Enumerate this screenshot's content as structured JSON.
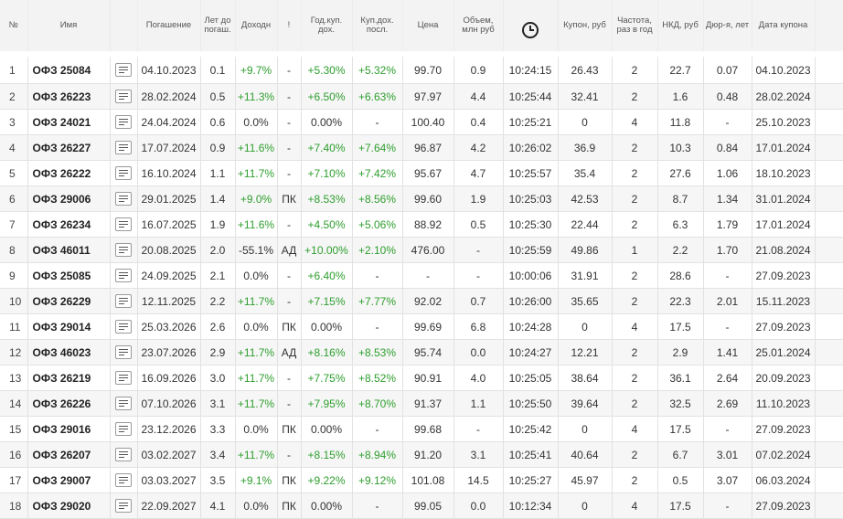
{
  "header": {
    "num": "№",
    "name": "Имя",
    "maturity": "Погашение",
    "years": "Лет до\nпогаш.",
    "yield": "Доходн",
    "flag": "!",
    "annual_coupon": "Год.куп.\nдох.",
    "coupon_last": "Куп.дох.\nпосл.",
    "price": "Цена",
    "volume": "Объем,\nмлн руб",
    "time_icon": "clock-icon",
    "coupon_rub": "Купон, руб",
    "frequency": "Частота,\nраз в год",
    "nkd": "НКД, руб",
    "duration": "Дюр-я, лет",
    "coupon_date": "Дата купона"
  },
  "colors": {
    "positive": "#2e9e2e",
    "header_bg": "#f3f3f3",
    "row_alt": "#f6f6f6"
  },
  "rows": [
    {
      "num": "1",
      "name": "ОФЗ 25084",
      "maturity": "04.10.2023",
      "years": "0.1",
      "yield": "+9.7%",
      "flag": "-",
      "annual_coupon": "+5.30%",
      "coupon_last": "+5.32%",
      "price": "99.70",
      "volume": "0.9",
      "time": "10:24:15",
      "coupon_rub": "26.43",
      "frequency": "2",
      "nkd": "22.7",
      "duration": "0.07",
      "coupon_date": "04.10.2023"
    },
    {
      "num": "2",
      "name": "ОФЗ 26223",
      "maturity": "28.02.2024",
      "years": "0.5",
      "yield": "+11.3%",
      "flag": "-",
      "annual_coupon": "+6.50%",
      "coupon_last": "+6.63%",
      "price": "97.97",
      "volume": "4.4",
      "time": "10:25:44",
      "coupon_rub": "32.41",
      "frequency": "2",
      "nkd": "1.6",
      "duration": "0.48",
      "coupon_date": "28.02.2024"
    },
    {
      "num": "3",
      "name": "ОФЗ 24021",
      "maturity": "24.04.2024",
      "years": "0.6",
      "yield": "0.0%",
      "flag": "-",
      "annual_coupon": "0.00%",
      "coupon_last": "-",
      "price": "100.40",
      "volume": "0.4",
      "time": "10:25:21",
      "coupon_rub": "0",
      "frequency": "4",
      "nkd": "11.8",
      "duration": "-",
      "coupon_date": "25.10.2023"
    },
    {
      "num": "4",
      "name": "ОФЗ 26227",
      "maturity": "17.07.2024",
      "years": "0.9",
      "yield": "+11.6%",
      "flag": "-",
      "annual_coupon": "+7.40%",
      "coupon_last": "+7.64%",
      "price": "96.87",
      "volume": "4.2",
      "time": "10:26:02",
      "coupon_rub": "36.9",
      "frequency": "2",
      "nkd": "10.3",
      "duration": "0.84",
      "coupon_date": "17.01.2024"
    },
    {
      "num": "5",
      "name": "ОФЗ 26222",
      "maturity": "16.10.2024",
      "years": "1.1",
      "yield": "+11.7%",
      "flag": "-",
      "annual_coupon": "+7.10%",
      "coupon_last": "+7.42%",
      "price": "95.67",
      "volume": "4.7",
      "time": "10:25:57",
      "coupon_rub": "35.4",
      "frequency": "2",
      "nkd": "27.6",
      "duration": "1.06",
      "coupon_date": "18.10.2023"
    },
    {
      "num": "6",
      "name": "ОФЗ 29006",
      "maturity": "29.01.2025",
      "years": "1.4",
      "yield": "+9.0%",
      "flag": "ПК",
      "annual_coupon": "+8.53%",
      "coupon_last": "+8.56%",
      "price": "99.60",
      "volume": "1.9",
      "time": "10:25:03",
      "coupon_rub": "42.53",
      "frequency": "2",
      "nkd": "8.7",
      "duration": "1.34",
      "coupon_date": "31.01.2024"
    },
    {
      "num": "7",
      "name": "ОФЗ 26234",
      "maturity": "16.07.2025",
      "years": "1.9",
      "yield": "+11.6%",
      "flag": "-",
      "annual_coupon": "+4.50%",
      "coupon_last": "+5.06%",
      "price": "88.92",
      "volume": "0.5",
      "time": "10:25:30",
      "coupon_rub": "22.44",
      "frequency": "2",
      "nkd": "6.3",
      "duration": "1.79",
      "coupon_date": "17.01.2024"
    },
    {
      "num": "8",
      "name": "ОФЗ 46011",
      "maturity": "20.08.2025",
      "years": "2.0",
      "yield": "-55.1%",
      "flag": "АД",
      "annual_coupon": "+10.00%",
      "coupon_last": "+2.10%",
      "price": "476.00",
      "volume": "-",
      "time": "10:25:59",
      "coupon_rub": "49.86",
      "frequency": "1",
      "nkd": "2.2",
      "duration": "1.70",
      "coupon_date": "21.08.2024"
    },
    {
      "num": "9",
      "name": "ОФЗ 25085",
      "maturity": "24.09.2025",
      "years": "2.1",
      "yield": "0.0%",
      "flag": "-",
      "annual_coupon": "+6.40%",
      "coupon_last": "-",
      "price": "-",
      "volume": "-",
      "time": "10:00:06",
      "coupon_rub": "31.91",
      "frequency": "2",
      "nkd": "28.6",
      "duration": "-",
      "coupon_date": "27.09.2023"
    },
    {
      "num": "10",
      "name": "ОФЗ 26229",
      "maturity": "12.11.2025",
      "years": "2.2",
      "yield": "+11.7%",
      "flag": "-",
      "annual_coupon": "+7.15%",
      "coupon_last": "+7.77%",
      "price": "92.02",
      "volume": "0.7",
      "time": "10:26:00",
      "coupon_rub": "35.65",
      "frequency": "2",
      "nkd": "22.3",
      "duration": "2.01",
      "coupon_date": "15.11.2023"
    },
    {
      "num": "11",
      "name": "ОФЗ 29014",
      "maturity": "25.03.2026",
      "years": "2.6",
      "yield": "0.0%",
      "flag": "ПК",
      "annual_coupon": "0.00%",
      "coupon_last": "-",
      "price": "99.69",
      "volume": "6.8",
      "time": "10:24:28",
      "coupon_rub": "0",
      "frequency": "4",
      "nkd": "17.5",
      "duration": "-",
      "coupon_date": "27.09.2023"
    },
    {
      "num": "12",
      "name": "ОФЗ 46023",
      "maturity": "23.07.2026",
      "years": "2.9",
      "yield": "+11.7%",
      "flag": "АД",
      "annual_coupon": "+8.16%",
      "coupon_last": "+8.53%",
      "price": "95.74",
      "volume": "0.0",
      "time": "10:24:27",
      "coupon_rub": "12.21",
      "frequency": "2",
      "nkd": "2.9",
      "duration": "1.41",
      "coupon_date": "25.01.2024"
    },
    {
      "num": "13",
      "name": "ОФЗ 26219",
      "maturity": "16.09.2026",
      "years": "3.0",
      "yield": "+11.7%",
      "flag": "-",
      "annual_coupon": "+7.75%",
      "coupon_last": "+8.52%",
      "price": "90.91",
      "volume": "4.0",
      "time": "10:25:05",
      "coupon_rub": "38.64",
      "frequency": "2",
      "nkd": "36.1",
      "duration": "2.64",
      "coupon_date": "20.09.2023"
    },
    {
      "num": "14",
      "name": "ОФЗ 26226",
      "maturity": "07.10.2026",
      "years": "3.1",
      "yield": "+11.7%",
      "flag": "-",
      "annual_coupon": "+7.95%",
      "coupon_last": "+8.70%",
      "price": "91.37",
      "volume": "1.1",
      "time": "10:25:50",
      "coupon_rub": "39.64",
      "frequency": "2",
      "nkd": "32.5",
      "duration": "2.69",
      "coupon_date": "11.10.2023"
    },
    {
      "num": "15",
      "name": "ОФЗ 29016",
      "maturity": "23.12.2026",
      "years": "3.3",
      "yield": "0.0%",
      "flag": "ПК",
      "annual_coupon": "0.00%",
      "coupon_last": "-",
      "price": "99.68",
      "volume": "-",
      "time": "10:25:42",
      "coupon_rub": "0",
      "frequency": "4",
      "nkd": "17.5",
      "duration": "-",
      "coupon_date": "27.09.2023"
    },
    {
      "num": "16",
      "name": "ОФЗ 26207",
      "maturity": "03.02.2027",
      "years": "3.4",
      "yield": "+11.7%",
      "flag": "-",
      "annual_coupon": "+8.15%",
      "coupon_last": "+8.94%",
      "price": "91.20",
      "volume": "3.1",
      "time": "10:25:41",
      "coupon_rub": "40.64",
      "frequency": "2",
      "nkd": "6.7",
      "duration": "3.01",
      "coupon_date": "07.02.2024"
    },
    {
      "num": "17",
      "name": "ОФЗ 29007",
      "maturity": "03.03.2027",
      "years": "3.5",
      "yield": "+9.1%",
      "flag": "ПК",
      "annual_coupon": "+9.22%",
      "coupon_last": "+9.12%",
      "price": "101.08",
      "volume": "14.5",
      "time": "10:25:27",
      "coupon_rub": "45.97",
      "frequency": "2",
      "nkd": "0.5",
      "duration": "3.07",
      "coupon_date": "06.03.2024"
    },
    {
      "num": "18",
      "name": "ОФЗ 29020",
      "maturity": "22.09.2027",
      "years": "4.1",
      "yield": "0.0%",
      "flag": "ПК",
      "annual_coupon": "0.00%",
      "coupon_last": "-",
      "price": "99.05",
      "volume": "0.0",
      "time": "10:12:34",
      "coupon_rub": "0",
      "frequency": "4",
      "nkd": "17.5",
      "duration": "-",
      "coupon_date": "27.09.2023"
    }
  ]
}
